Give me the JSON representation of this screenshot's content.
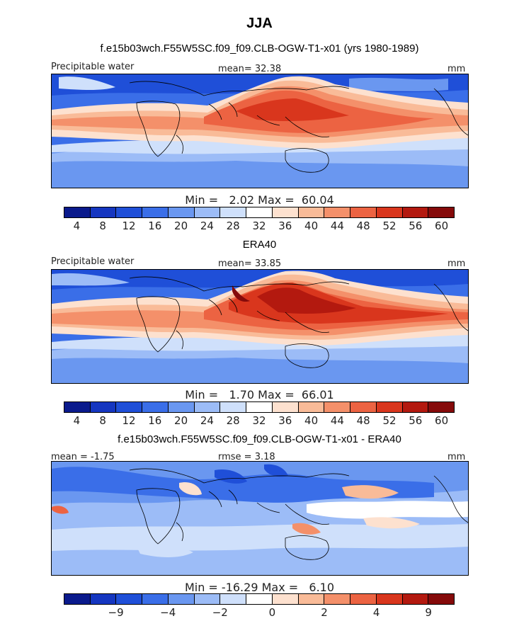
{
  "title": "JJA",
  "panels": [
    {
      "id": "model",
      "heading": "f.e15b03wch.F55W5SC.f09_f09.CLB-OGW-T1-x01 (yrs 1980-1989)",
      "left_label": "Precipitable water",
      "center_label": "mean=  32.38",
      "units": "mm",
      "minmax": "Min =   2.02 Max =  60.04",
      "colorbar": {
        "colors": [
          "#0a1a8c",
          "#1536c0",
          "#1f4fd8",
          "#3a6ee8",
          "#6a97f0",
          "#9cbcf7",
          "#cfe0fb",
          "#ffffff",
          "#fde1cf",
          "#f9bb98",
          "#f4906a",
          "#ec6342",
          "#d9361d",
          "#b3190f",
          "#850a0a"
        ],
        "tick_labels": [
          "4",
          "8",
          "12",
          "16",
          "20",
          "24",
          "28",
          "32",
          "36",
          "40",
          "44",
          "48",
          "52",
          "56",
          "60"
        ]
      }
    },
    {
      "id": "obs",
      "heading": "ERA40",
      "left_label": "Precipitable water",
      "center_label": "mean=  33.85",
      "units": "mm",
      "minmax": "Min =   1.70 Max =  66.01",
      "colorbar": {
        "colors": [
          "#0a1a8c",
          "#1536c0",
          "#1f4fd8",
          "#3a6ee8",
          "#6a97f0",
          "#9cbcf7",
          "#cfe0fb",
          "#ffffff",
          "#fde1cf",
          "#f9bb98",
          "#f4906a",
          "#ec6342",
          "#d9361d",
          "#b3190f",
          "#850a0a"
        ],
        "tick_labels": [
          "4",
          "8",
          "12",
          "16",
          "20",
          "24",
          "28",
          "32",
          "36",
          "40",
          "44",
          "48",
          "52",
          "56",
          "60"
        ]
      }
    },
    {
      "id": "diff",
      "heading": "f.e15b03wch.F55W5SC.f09_f09.CLB-OGW-T1-x01 - ERA40",
      "left_label": "mean =  -1.75",
      "center_label": "rmse =   3.18",
      "units": "mm",
      "minmax": "Min = -16.29 Max =   6.10",
      "colorbar": {
        "colors": [
          "#0a1a8c",
          "#1536c0",
          "#1f4fd8",
          "#3a6ee8",
          "#6a97f0",
          "#9cbcf7",
          "#cfe0fb",
          "#ffffff",
          "#fde1cf",
          "#f9bb98",
          "#f4906a",
          "#ec6342",
          "#d9361d",
          "#b3190f",
          "#850a0a"
        ],
        "tick_labels": [
          "−9",
          "−4",
          "−2",
          "0",
          "2",
          "4",
          "9"
        ]
      }
    }
  ]
}
